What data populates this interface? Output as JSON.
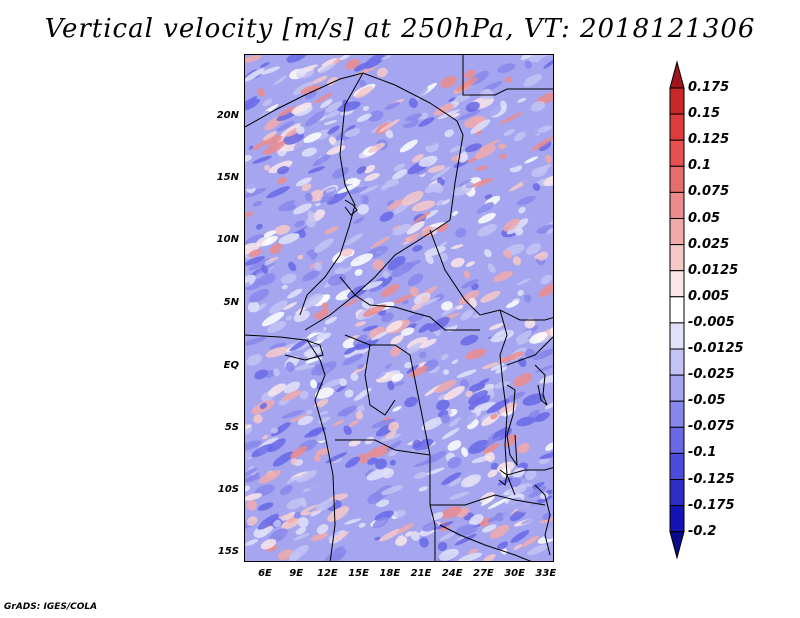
{
  "title": "Vertical velocity [m/s] at 250hPa, VT: 2018121306",
  "credit": "GrADS: IGES/COLA",
  "lat_labels": [
    "20N",
    "15N",
    "10N",
    "5N",
    "EQ",
    "5S",
    "10S",
    "15S"
  ],
  "lon_labels": [
    "6E",
    "9E",
    "12E",
    "15E",
    "18E",
    "21E",
    "24E",
    "27E",
    "30E",
    "33E"
  ],
  "colorbar": {
    "labels": [
      "0.175",
      "0.15",
      "0.125",
      "0.1",
      "0.075",
      "0.05",
      "0.025",
      "0.0125",
      "0.005",
      "-0.005",
      "-0.0125",
      "-0.025",
      "-0.05",
      "-0.075",
      "-0.1",
      "-0.125",
      "-0.175",
      "-0.2"
    ],
    "colors": [
      "#a0141c",
      "#c82828",
      "#dc3c3c",
      "#e65050",
      "#e66e6e",
      "#eb8c8c",
      "#f0aaaa",
      "#f5c8c8",
      "#fae6e6",
      "#ffffff",
      "#e1e1fa",
      "#c3c3f5",
      "#a5a5f0",
      "#8787eb",
      "#6969e6",
      "#4b4bdc",
      "#2d2dc8",
      "#1414b4",
      "#0a0a8c"
    ]
  }
}
